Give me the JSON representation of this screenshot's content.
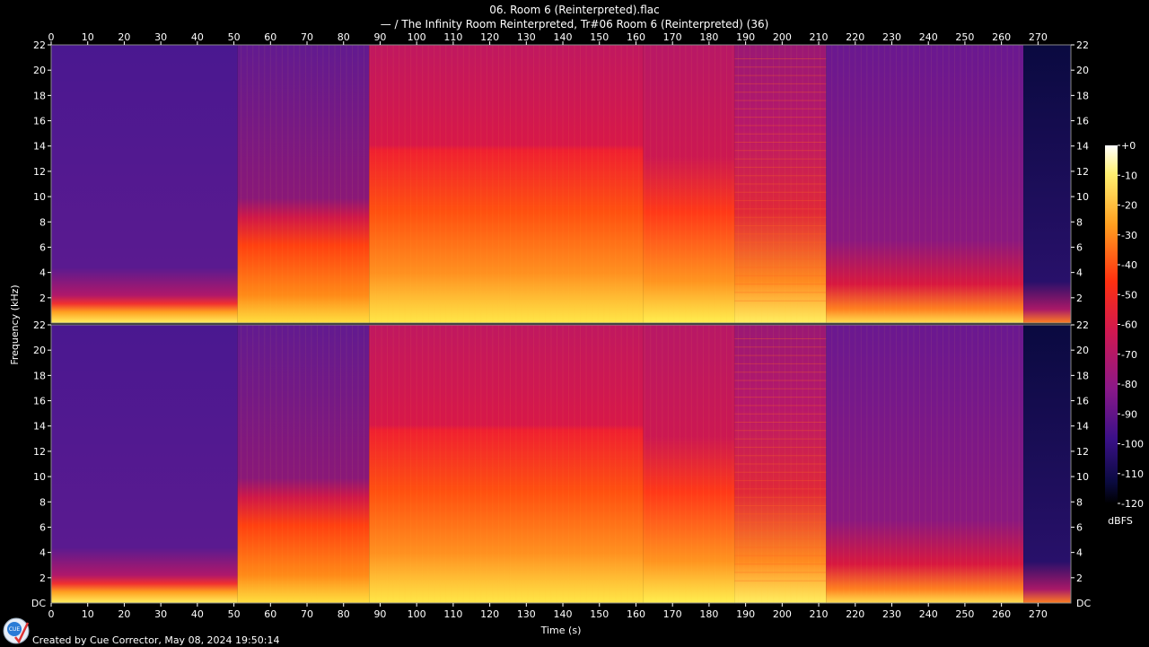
{
  "title": "06. Room 6 (Reinterpreted).flac",
  "subtitle": "— / The Infinity Room Reinterpreted, Tr#06 Room 6 (Reinterpreted) (36)",
  "footer": "Created by Cue Corrector, May 08, 2024 19:50:14",
  "logo_text": "CUE",
  "chart_data": {
    "type": "heatmap",
    "xlabel": "Time (s)",
    "ylabel": "Frequency (kHz)",
    "xlim": [
      0,
      279
    ],
    "ylim": [
      0,
      22
    ],
    "x_ticks": [
      0,
      10,
      20,
      30,
      40,
      50,
      60,
      70,
      80,
      90,
      100,
      110,
      120,
      130,
      140,
      150,
      160,
      170,
      180,
      190,
      200,
      210,
      220,
      230,
      240,
      250,
      260,
      270
    ],
    "y_ticks": [
      2,
      4,
      6,
      8,
      10,
      12,
      14,
      16,
      18,
      20,
      22
    ],
    "y_tick_labels": [
      "2",
      "4",
      "6",
      "8",
      "10",
      "12",
      "14",
      "16",
      "18",
      "20",
      "22"
    ],
    "dc_label": "DC",
    "channels": 2,
    "colorbar": {
      "label": "dBFS",
      "range": [
        -120,
        0
      ],
      "ticks": [
        0,
        -10,
        -20,
        -30,
        -40,
        -50,
        -60,
        -70,
        -80,
        -90,
        -100,
        -110,
        -120
      ],
      "tick_labels": [
        "+0",
        "-10",
        "-20",
        "-30",
        "-40",
        "-50",
        "-60",
        "-70",
        "-80",
        "-90",
        "-100",
        "-110",
        "-120"
      ]
    },
    "sections_s": [
      0,
      51,
      87,
      162,
      187,
      212,
      266,
      279
    ]
  }
}
